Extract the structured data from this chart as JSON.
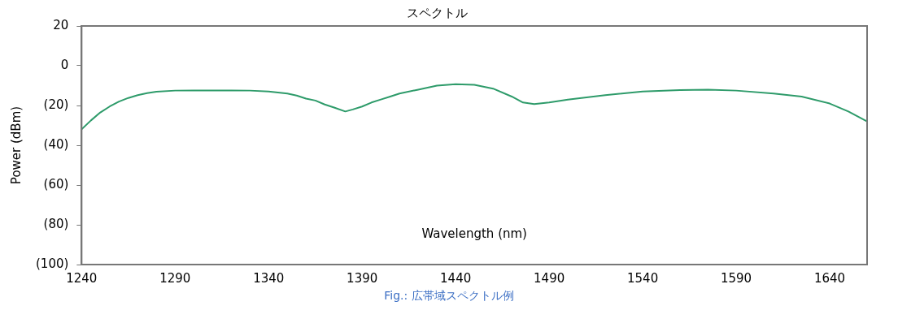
{
  "chart_data": {
    "type": "line",
    "title": "スペクトル",
    "xlabel": "Wavelength (nm)",
    "ylabel": "Power (dBm)",
    "annotations": [
      "Fig.: 広帯域スペクトル例"
    ],
    "xlim": [
      1240,
      1660
    ],
    "xticks": [
      1240,
      1290,
      1340,
      1390,
      1440,
      1490,
      1540,
      1590,
      1640
    ],
    "ylim": [
      -100,
      20
    ],
    "yticks": [
      {
        "value": -100,
        "label": "(100)"
      },
      {
        "value": -80,
        "label": "(80)"
      },
      {
        "value": -60,
        "label": "(60)"
      },
      {
        "value": -40,
        "label": "(40)"
      },
      {
        "value": -20,
        "label": "(20)"
      },
      0,
      20
    ],
    "grid": false,
    "legend": false,
    "marker": "none",
    "line_style": "solid",
    "series": [
      {
        "color": "#2e9b6a",
        "x": [
          1240,
          1245,
          1250,
          1255,
          1260,
          1265,
          1270,
          1275,
          1280,
          1290,
          1300,
          1320,
          1330,
          1340,
          1350,
          1355,
          1360,
          1365,
          1370,
          1375,
          1381,
          1385,
          1390,
          1395,
          1400,
          1405,
          1410,
          1420,
          1430,
          1440,
          1450,
          1460,
          1470,
          1476,
          1482,
          1490,
          1500,
          1520,
          1540,
          1560,
          1575,
          1590,
          1610,
          1625,
          1640,
          1650,
          1660
        ],
        "values": [
          -32,
          -27.5,
          -23.5,
          -20.5,
          -18,
          -16.2,
          -14.8,
          -13.8,
          -13.1,
          -12.5,
          -12.4,
          -12.4,
          -12.5,
          -13,
          -14,
          -15,
          -16.5,
          -17.5,
          -19.5,
          -21,
          -23,
          -22,
          -20.5,
          -18.5,
          -17,
          -15.5,
          -14,
          -12,
          -10,
          -9.3,
          -9.6,
          -11.5,
          -15.5,
          -18.5,
          -19.3,
          -18.5,
          -17,
          -14.8,
          -13,
          -12.2,
          -12,
          -12.5,
          -14,
          -15.5,
          -19,
          -23,
          -28
        ]
      }
    ]
  }
}
